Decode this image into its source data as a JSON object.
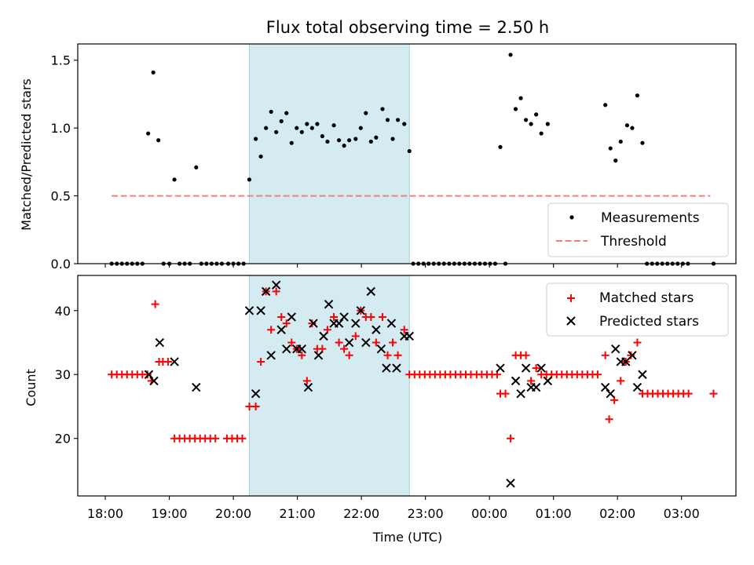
{
  "chart_data": [
    {
      "type": "scatter",
      "title": "Flux total observing time = 2.50 h",
      "xlabel": "",
      "ylabel": "Matched/Predicted stars",
      "xlim": [
        -0.43,
        9.85
      ],
      "ylim": [
        0,
        1.62
      ],
      "yticks": [
        0.0,
        0.5,
        1.0,
        1.5
      ],
      "ytick_labels": [
        "0.0",
        "0.5",
        "1.0",
        "1.5"
      ],
      "grid": false,
      "legend": "lower-right",
      "shaded_interval": [
        2.25,
        4.75
      ],
      "series": [
        {
          "name": "Measurements",
          "kind": "scatter",
          "color": "#000000",
          "points": [
            [
              0.1,
              0
            ],
            [
              0.18,
              0
            ],
            [
              0.26,
              0
            ],
            [
              0.34,
              0
            ],
            [
              0.42,
              0
            ],
            [
              0.5,
              0
            ],
            [
              0.58,
              0
            ],
            [
              0.67,
              0.96
            ],
            [
              0.75,
              1.41
            ],
            [
              0.83,
              0.91
            ],
            [
              0.91,
              0
            ],
            [
              1.0,
              0
            ],
            [
              1.08,
              0.62
            ],
            [
              1.16,
              0
            ],
            [
              1.24,
              0
            ],
            [
              1.32,
              0
            ],
            [
              1.42,
              0.71
            ],
            [
              1.5,
              0
            ],
            [
              1.58,
              0
            ],
            [
              1.66,
              0
            ],
            [
              1.74,
              0
            ],
            [
              1.82,
              0
            ],
            [
              1.92,
              0
            ],
            [
              2.0,
              0
            ],
            [
              2.08,
              0
            ],
            [
              2.16,
              0
            ],
            [
              2.25,
              0.62
            ],
            [
              2.35,
              0.92
            ],
            [
              2.43,
              0.79
            ],
            [
              2.51,
              1.0
            ],
            [
              2.59,
              1.12
            ],
            [
              2.67,
              0.97
            ],
            [
              2.75,
              1.05
            ],
            [
              2.83,
              1.11
            ],
            [
              2.91,
              0.89
            ],
            [
              2.99,
              1.0
            ],
            [
              3.07,
              0.97
            ],
            [
              3.15,
              1.03
            ],
            [
              3.23,
              1.0
            ],
            [
              3.31,
              1.03
            ],
            [
              3.39,
              0.94
            ],
            [
              3.47,
              0.9
            ],
            [
              3.57,
              1.02
            ],
            [
              3.65,
              0.91
            ],
            [
              3.73,
              0.87
            ],
            [
              3.81,
              0.91
            ],
            [
              3.91,
              0.92
            ],
            [
              3.99,
              1.0
            ],
            [
              4.07,
              1.11
            ],
            [
              4.15,
              0.9
            ],
            [
              4.23,
              0.93
            ],
            [
              4.33,
              1.14
            ],
            [
              4.41,
              1.06
            ],
            [
              4.49,
              0.92
            ],
            [
              4.57,
              1.06
            ],
            [
              4.67,
              1.03
            ],
            [
              4.75,
              0.83
            ],
            [
              4.81,
              0
            ],
            [
              4.89,
              0
            ],
            [
              4.97,
              0
            ],
            [
              5.05,
              0
            ],
            [
              5.13,
              0
            ],
            [
              5.21,
              0
            ],
            [
              5.29,
              0
            ],
            [
              5.37,
              0
            ],
            [
              5.45,
              0
            ],
            [
              5.53,
              0
            ],
            [
              5.61,
              0
            ],
            [
              5.69,
              0
            ],
            [
              5.77,
              0
            ],
            [
              5.85,
              0
            ],
            [
              5.93,
              0
            ],
            [
              6.01,
              0
            ],
            [
              6.09,
              0
            ],
            [
              6.17,
              0.86
            ],
            [
              6.25,
              0
            ],
            [
              6.33,
              1.54
            ],
            [
              6.41,
              1.14
            ],
            [
              6.49,
              1.22
            ],
            [
              6.57,
              1.06
            ],
            [
              6.65,
              1.03
            ],
            [
              6.73,
              1.1
            ],
            [
              6.81,
              0.96
            ],
            [
              6.91,
              1.03
            ],
            [
              7.81,
              1.17
            ],
            [
              7.89,
              0.85
            ],
            [
              7.97,
              0.76
            ],
            [
              8.05,
              0.9
            ],
            [
              8.15,
              1.02
            ],
            [
              8.23,
              1.0
            ],
            [
              8.31,
              1.24
            ],
            [
              8.39,
              0.89
            ],
            [
              8.46,
              0
            ],
            [
              8.54,
              0
            ],
            [
              8.62,
              0
            ],
            [
              8.7,
              0
            ],
            [
              8.78,
              0
            ],
            [
              8.86,
              0
            ],
            [
              8.94,
              0
            ],
            [
              9.02,
              0
            ],
            [
              9.1,
              0
            ],
            [
              9.5,
              0
            ]
          ]
        },
        {
          "name": "Threshold",
          "kind": "line",
          "style": "dashed",
          "color": "#f08080",
          "x": [
            0.1,
            9.45
          ],
          "y": [
            0.5,
            0.5
          ]
        }
      ]
    },
    {
      "type": "scatter",
      "title": "",
      "xlabel": "Time (UTC)",
      "ylabel": "Count",
      "xlim": [
        -0.43,
        9.85
      ],
      "ylim": [
        11,
        45.5
      ],
      "yticks": [
        20,
        30,
        40
      ],
      "ytick_labels": [
        "20",
        "30",
        "40"
      ],
      "xticks": [
        0,
        1,
        2,
        3,
        4,
        5,
        6,
        7,
        8,
        9
      ],
      "xtick_labels": [
        "18:00",
        "19:00",
        "20:00",
        "21:00",
        "22:00",
        "23:00",
        "00:00",
        "01:00",
        "02:00",
        "03:00"
      ],
      "grid": false,
      "legend": "upper-right",
      "shaded_interval": [
        2.25,
        4.75
      ],
      "series": [
        {
          "name": "Matched stars",
          "kind": "scatter",
          "marker": "+",
          "color": "#ff0000",
          "points": [
            [
              0.1,
              30
            ],
            [
              0.18,
              30
            ],
            [
              0.26,
              30
            ],
            [
              0.34,
              30
            ],
            [
              0.42,
              30
            ],
            [
              0.5,
              30
            ],
            [
              0.58,
              30
            ],
            [
              0.66,
              30
            ],
            [
              0.72,
              29
            ],
            [
              0.78,
              41
            ],
            [
              0.84,
              32
            ],
            [
              0.9,
              32
            ],
            [
              0.98,
              32
            ],
            [
              1.08,
              20
            ],
            [
              1.16,
              20
            ],
            [
              1.24,
              20
            ],
            [
              1.32,
              20
            ],
            [
              1.4,
              20
            ],
            [
              1.48,
              20
            ],
            [
              1.56,
              20
            ],
            [
              1.64,
              20
            ],
            [
              1.72,
              20
            ],
            [
              1.9,
              20
            ],
            [
              1.98,
              20
            ],
            [
              2.06,
              20
            ],
            [
              2.14,
              20
            ],
            [
              2.25,
              25
            ],
            [
              2.35,
              25
            ],
            [
              2.43,
              32
            ],
            [
              2.51,
              43
            ],
            [
              2.59,
              37
            ],
            [
              2.67,
              43
            ],
            [
              2.75,
              39
            ],
            [
              2.83,
              38
            ],
            [
              2.91,
              35
            ],
            [
              2.99,
              34
            ],
            [
              3.07,
              33
            ],
            [
              3.15,
              29
            ],
            [
              3.23,
              38
            ],
            [
              3.31,
              34
            ],
            [
              3.39,
              34
            ],
            [
              3.47,
              37
            ],
            [
              3.57,
              39
            ],
            [
              3.65,
              35
            ],
            [
              3.73,
              34
            ],
            [
              3.81,
              33
            ],
            [
              3.91,
              36
            ],
            [
              3.99,
              40
            ],
            [
              4.07,
              39
            ],
            [
              4.15,
              39
            ],
            [
              4.23,
              35
            ],
            [
              4.33,
              39
            ],
            [
              4.41,
              33
            ],
            [
              4.49,
              35
            ],
            [
              4.57,
              33
            ],
            [
              4.67,
              37
            ],
            [
              4.75,
              30
            ],
            [
              4.83,
              30
            ],
            [
              4.91,
              30
            ],
            [
              4.99,
              30
            ],
            [
              5.07,
              30
            ],
            [
              5.15,
              30
            ],
            [
              5.23,
              30
            ],
            [
              5.31,
              30
            ],
            [
              5.39,
              30
            ],
            [
              5.47,
              30
            ],
            [
              5.55,
              30
            ],
            [
              5.63,
              30
            ],
            [
              5.71,
              30
            ],
            [
              5.8,
              30
            ],
            [
              5.88,
              30
            ],
            [
              5.96,
              30
            ],
            [
              6.04,
              30
            ],
            [
              6.12,
              30
            ],
            [
              6.17,
              27
            ],
            [
              6.25,
              27
            ],
            [
              6.33,
              20
            ],
            [
              6.41,
              33
            ],
            [
              6.49,
              33
            ],
            [
              6.57,
              33
            ],
            [
              6.65,
              29
            ],
            [
              6.73,
              31
            ],
            [
              6.81,
              30
            ],
            [
              6.89,
              30
            ],
            [
              6.97,
              30
            ],
            [
              7.05,
              30
            ],
            [
              7.13,
              30
            ],
            [
              7.21,
              30
            ],
            [
              7.29,
              30
            ],
            [
              7.37,
              30
            ],
            [
              7.45,
              30
            ],
            [
              7.53,
              30
            ],
            [
              7.61,
              30
            ],
            [
              7.69,
              30
            ],
            [
              7.81,
              33
            ],
            [
              7.87,
              23
            ],
            [
              7.95,
              26
            ],
            [
              8.05,
              29
            ],
            [
              8.13,
              32
            ],
            [
              8.21,
              33
            ],
            [
              8.31,
              35
            ],
            [
              8.39,
              27
            ],
            [
              8.47,
              27
            ],
            [
              8.55,
              27
            ],
            [
              8.63,
              27
            ],
            [
              8.71,
              27
            ],
            [
              8.79,
              27
            ],
            [
              8.87,
              27
            ],
            [
              8.95,
              27
            ],
            [
              9.03,
              27
            ],
            [
              9.11,
              27
            ],
            [
              9.5,
              27
            ]
          ]
        },
        {
          "name": "Predicted stars",
          "kind": "scatter",
          "marker": "x",
          "color": "#000000",
          "points": [
            [
              0.68,
              30
            ],
            [
              0.76,
              29
            ],
            [
              0.85,
              35
            ],
            [
              1.08,
              32
            ],
            [
              1.42,
              28
            ],
            [
              2.25,
              40
            ],
            [
              2.35,
              27
            ],
            [
              2.43,
              40
            ],
            [
              2.51,
              43
            ],
            [
              2.59,
              33
            ],
            [
              2.67,
              44
            ],
            [
              2.75,
              37
            ],
            [
              2.83,
              34
            ],
            [
              2.91,
              39
            ],
            [
              2.99,
              34
            ],
            [
              3.07,
              34
            ],
            [
              3.17,
              28
            ],
            [
              3.25,
              38
            ],
            [
              3.33,
              33
            ],
            [
              3.41,
              36
            ],
            [
              3.49,
              41
            ],
            [
              3.57,
              38
            ],
            [
              3.65,
              38
            ],
            [
              3.73,
              39
            ],
            [
              3.81,
              35
            ],
            [
              3.91,
              38
            ],
            [
              3.99,
              40
            ],
            [
              4.07,
              35
            ],
            [
              4.15,
              43
            ],
            [
              4.23,
              37
            ],
            [
              4.31,
              34
            ],
            [
              4.39,
              31
            ],
            [
              4.47,
              38
            ],
            [
              4.55,
              31
            ],
            [
              4.67,
              36
            ],
            [
              4.75,
              36
            ],
            [
              6.17,
              31
            ],
            [
              6.33,
              13
            ],
            [
              6.41,
              29
            ],
            [
              6.49,
              27
            ],
            [
              6.57,
              31
            ],
            [
              6.65,
              28
            ],
            [
              6.73,
              28
            ],
            [
              6.81,
              31
            ],
            [
              6.91,
              29
            ],
            [
              7.81,
              28
            ],
            [
              7.89,
              27
            ],
            [
              7.97,
              34
            ],
            [
              8.05,
              32
            ],
            [
              8.13,
              32
            ],
            [
              8.23,
              33
            ],
            [
              8.31,
              28
            ],
            [
              8.39,
              30
            ]
          ]
        }
      ]
    }
  ]
}
